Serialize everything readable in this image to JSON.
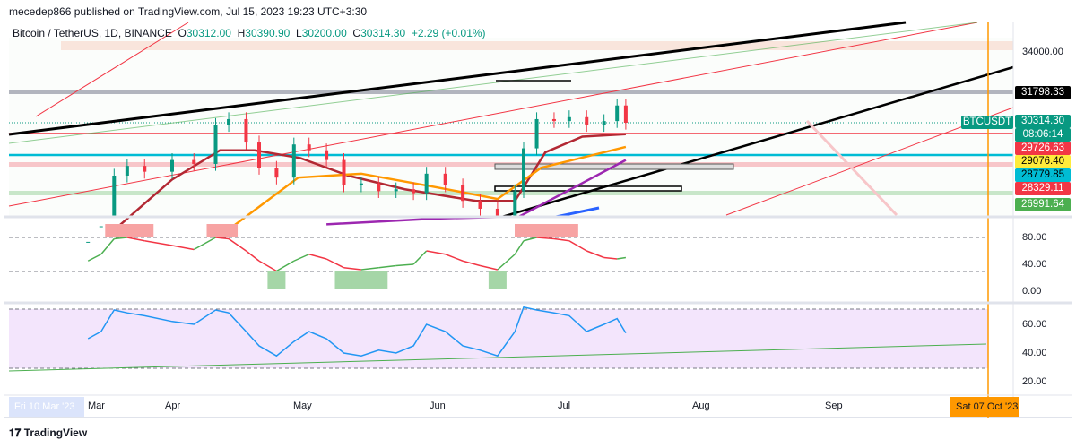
{
  "header": {
    "published": "mecedep866 published on TradingView.com, Jul 15, 2023 19:23 UTC+3:30"
  },
  "legend": {
    "symbol": "Bitcoin / TetherUS, 1D, BINANCE",
    "o_label": "O",
    "open": "30312.00",
    "h_label": "H",
    "high": "30390.90",
    "l_label": "L",
    "low": "30200.00",
    "c_label": "C",
    "close": "30314.30",
    "change": "+2.29 (+0.01%)"
  },
  "price_axis": {
    "ticks": [
      "34000.00"
    ],
    "labels": [
      {
        "text": "31798.33",
        "color": "#000000",
        "fg": "#ffffff"
      },
      {
        "text": "30314.30",
        "color": "#089981",
        "fg": "#ffffff"
      },
      {
        "text": "08:06:14",
        "color": "#089981",
        "fg": "#ffffff"
      },
      {
        "text": "29726.63",
        "color": "#f23645",
        "fg": "#ffffff"
      },
      {
        "text": "29076.40",
        "color": "#ffeb3b",
        "fg": "#000000"
      },
      {
        "text": "28779.85",
        "color": "#00bcd4",
        "fg": "#000000"
      },
      {
        "text": "28329.11",
        "color": "#f23645",
        "fg": "#ffffff"
      },
      {
        "text": "26991.64",
        "color": "#4caf50",
        "fg": "#ffffff"
      }
    ],
    "symbol_tag": "BTCUSDT"
  },
  "osc1_axis": [
    "80.00",
    "40.00",
    "0.00"
  ],
  "osc2_axis": [
    "60.00",
    "40.00",
    "20.00"
  ],
  "time_axis": {
    "labels": [
      "Mar",
      "Apr",
      "May",
      "Jun",
      "Jul",
      "Aug",
      "Sep"
    ],
    "crosshair_left": "Fri 10 Mar '23",
    "crosshair_right": "Sat 07 Oct '23"
  },
  "brand": "TradingView",
  "chart_data": {
    "type": "candlestick",
    "symbol": "BTCUSDT",
    "interval": "1D",
    "dates": [
      "Mar 13",
      "Mar 16",
      "Mar 19",
      "Mar 22",
      "Mar 26",
      "Apr 1",
      "Apr 6",
      "Apr 11",
      "Apr 14",
      "Apr 18",
      "Apr 21",
      "Apr 25",
      "Apr 29",
      "May 3",
      "May 7",
      "May 11",
      "May 15",
      "May 19",
      "May 23",
      "May 27",
      "May 30",
      "Jun 3",
      "Jun 7",
      "Jun 11",
      "Jun 15",
      "Jun 19",
      "Jun 21",
      "Jun 24",
      "Jun 28",
      "Jul 2",
      "Jul 6",
      "Jul 10",
      "Jul 13",
      "Jul 15"
    ],
    "closes": [
      24200,
      25000,
      27600,
      28100,
      27800,
      28400,
      28200,
      30200,
      30500,
      29300,
      28000,
      27500,
      29200,
      28900,
      28400,
      27100,
      27200,
      26800,
      26900,
      26700,
      27700,
      27100,
      26300,
      25900,
      25200,
      26800,
      29000,
      30500,
      30400,
      30600,
      30200,
      30400,
      31200,
      30314
    ],
    "rsi1": [
      45,
      55,
      78,
      80,
      75,
      68,
      62,
      80,
      78,
      60,
      45,
      30,
      45,
      55,
      48,
      35,
      32,
      35,
      38,
      40,
      60,
      55,
      45,
      38,
      32,
      55,
      75,
      80,
      78,
      75,
      60,
      50,
      48,
      50
    ],
    "rsi2": [
      50,
      55,
      70,
      68,
      66,
      62,
      60,
      70,
      68,
      55,
      45,
      38,
      48,
      55,
      50,
      40,
      38,
      42,
      40,
      45,
      60,
      55,
      45,
      42,
      38,
      55,
      72,
      70,
      68,
      66,
      55,
      60,
      64,
      54
    ]
  }
}
